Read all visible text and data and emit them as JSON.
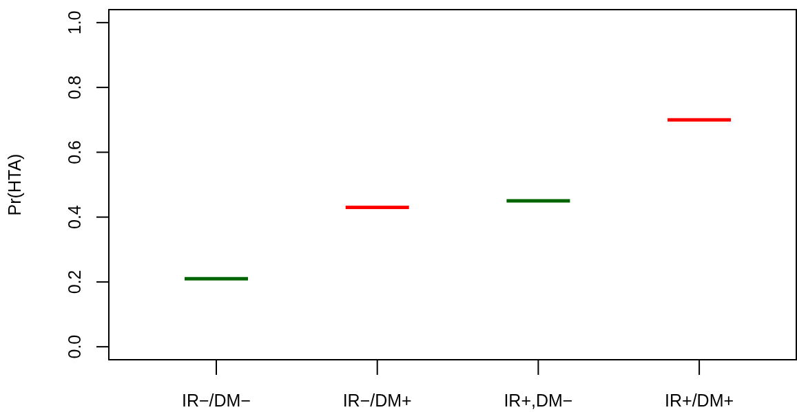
{
  "chart_data": {
    "type": "box",
    "ylabel": "Pr(HTA)",
    "categories": [
      "IR−/DM−",
      "IR−/DM+",
      "IR+,DM−",
      "IR+/DM+"
    ],
    "boxes": [
      {
        "low": 0.21,
        "q1": 0.21,
        "median": 0.21,
        "q3": 0.21,
        "high": 0.21
      },
      {
        "low": 0.43,
        "q1": 0.43,
        "median": 0.43,
        "q3": 0.43,
        "high": 0.43
      },
      {
        "low": 0.45,
        "q1": 0.45,
        "median": 0.45,
        "q3": 0.45,
        "high": 0.45
      },
      {
        "low": 0.7,
        "q1": 0.7,
        "median": 0.7,
        "q3": 0.7,
        "high": 0.7
      }
    ],
    "colors": [
      "#006400",
      "#ff0000",
      "#006400",
      "#ff0000"
    ],
    "ylim": [
      -0.04,
      1.04
    ],
    "yticks": [
      {
        "value": 0,
        "label": "0.0"
      },
      0.2,
      0.4,
      0.6,
      0.8,
      {
        "value": 1,
        "label": "1.0"
      }
    ],
    "grid": false
  }
}
